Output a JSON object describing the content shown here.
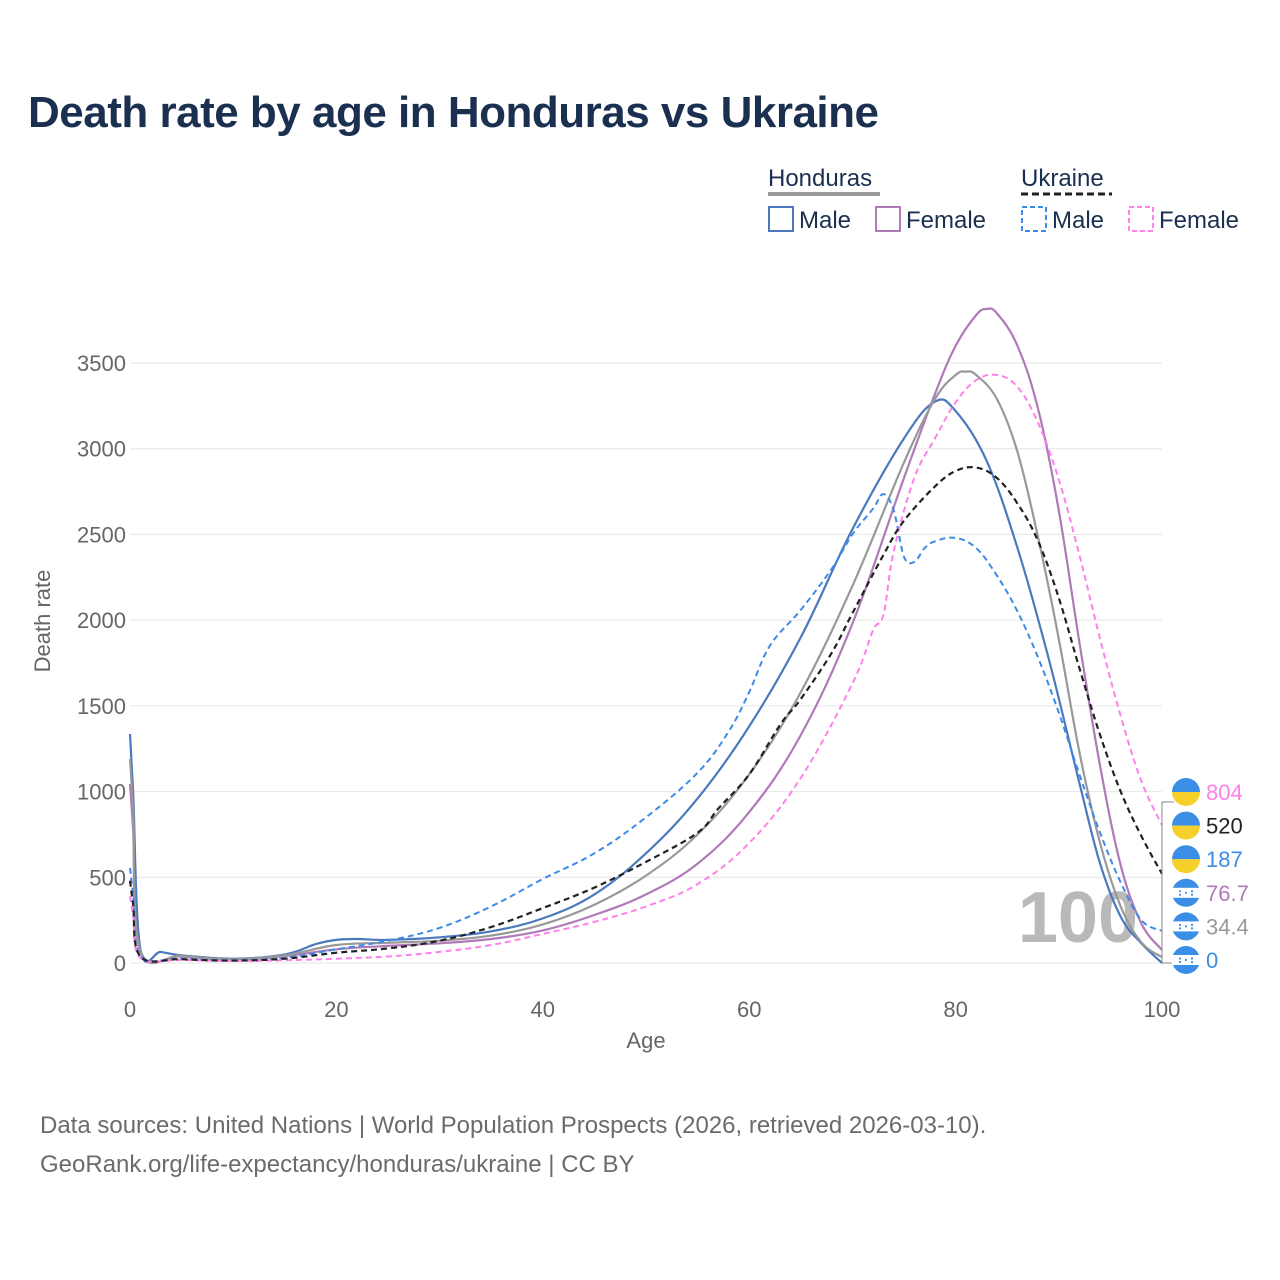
{
  "title": "Death rate by age in Honduras vs Ukraine",
  "legend": {
    "groups": [
      {
        "name": "Honduras",
        "line_color": "#999999",
        "dashed": false,
        "items": [
          {
            "label": "Male",
            "color": "#4a79bd"
          },
          {
            "label": "Female",
            "color": "#b07ab8"
          }
        ]
      },
      {
        "name": "Ukraine",
        "line_color": "#222222",
        "dashed": true,
        "items": [
          {
            "label": "Male",
            "color": "#3d8be8"
          },
          {
            "label": "Female",
            "color": "#ff80e8"
          }
        ]
      }
    ]
  },
  "chart_data": {
    "type": "line",
    "title": "Death rate by age in Honduras vs Ukraine",
    "xlabel": "Age",
    "ylabel": "Death rate",
    "xlim": [
      0,
      100
    ],
    "ylim": [
      0,
      3900
    ],
    "x_ticks": [
      0,
      20,
      40,
      60,
      80,
      100
    ],
    "y_ticks": [
      0,
      500,
      1000,
      1500,
      2000,
      2500,
      3000,
      3500
    ],
    "grid": true,
    "watermark": "100",
    "series": [
      {
        "name": "Honduras Male",
        "color": "#4a79bd",
        "dashed": false,
        "width": 2.2,
        "points": [
          [
            0,
            1335
          ],
          [
            0.3,
            1000
          ],
          [
            1,
            85
          ],
          [
            3,
            65
          ],
          [
            5,
            45
          ],
          [
            10,
            25
          ],
          [
            15,
            50
          ],
          [
            18,
            110
          ],
          [
            20,
            135
          ],
          [
            22,
            140
          ],
          [
            25,
            135
          ],
          [
            30,
            150
          ],
          [
            35,
            185
          ],
          [
            40,
            260
          ],
          [
            45,
            400
          ],
          [
            50,
            640
          ],
          [
            55,
            960
          ],
          [
            60,
            1380
          ],
          [
            65,
            1900
          ],
          [
            70,
            2530
          ],
          [
            75,
            3060
          ],
          [
            78,
            3275
          ],
          [
            80,
            3220
          ],
          [
            83,
            2930
          ],
          [
            86,
            2420
          ],
          [
            89,
            1780
          ],
          [
            92,
            1050
          ],
          [
            94,
            580
          ],
          [
            96,
            270
          ],
          [
            98,
            115
          ],
          [
            100,
            0
          ]
        ]
      },
      {
        "name": "Honduras Female",
        "color": "#b07ab8",
        "dashed": false,
        "width": 2.2,
        "points": [
          [
            0,
            1045
          ],
          [
            0.3,
            780
          ],
          [
            1,
            65
          ],
          [
            5,
            38
          ],
          [
            10,
            20
          ],
          [
            15,
            40
          ],
          [
            20,
            80
          ],
          [
            25,
            100
          ],
          [
            30,
            115
          ],
          [
            35,
            140
          ],
          [
            40,
            190
          ],
          [
            45,
            280
          ],
          [
            50,
            400
          ],
          [
            55,
            580
          ],
          [
            60,
            880
          ],
          [
            65,
            1330
          ],
          [
            70,
            1980
          ],
          [
            75,
            2830
          ],
          [
            78,
            3320
          ],
          [
            80,
            3600
          ],
          [
            82,
            3780
          ],
          [
            83,
            3815
          ],
          [
            84,
            3790
          ],
          [
            86,
            3600
          ],
          [
            88,
            3230
          ],
          [
            90,
            2640
          ],
          [
            92,
            1870
          ],
          [
            94,
            1150
          ],
          [
            96,
            570
          ],
          [
            98,
            230
          ],
          [
            100,
            76.7
          ]
        ]
      },
      {
        "name": "Honduras (both)",
        "color": "#999999",
        "dashed": false,
        "width": 2.2,
        "points": [
          [
            0,
            1190
          ],
          [
            0.3,
            890
          ],
          [
            1,
            75
          ],
          [
            5,
            42
          ],
          [
            10,
            22
          ],
          [
            15,
            45
          ],
          [
            20,
            105
          ],
          [
            25,
            118
          ],
          [
            30,
            130
          ],
          [
            35,
            160
          ],
          [
            40,
            225
          ],
          [
            45,
            340
          ],
          [
            50,
            510
          ],
          [
            55,
            750
          ],
          [
            60,
            1100
          ],
          [
            65,
            1580
          ],
          [
            70,
            2200
          ],
          [
            75,
            2920
          ],
          [
            78,
            3290
          ],
          [
            80,
            3430
          ],
          [
            81,
            3450
          ],
          [
            82,
            3430
          ],
          [
            84,
            3290
          ],
          [
            86,
            2980
          ],
          [
            88,
            2480
          ],
          [
            90,
            1890
          ],
          [
            92,
            1230
          ],
          [
            94,
            700
          ],
          [
            96,
            330
          ],
          [
            98,
            120
          ],
          [
            100,
            34.4
          ]
        ]
      },
      {
        "name": "Ukraine Male",
        "color": "#3d8be8",
        "dashed": true,
        "width": 2.0,
        "points": [
          [
            0,
            555
          ],
          [
            0.3,
            400
          ],
          [
            1,
            45
          ],
          [
            5,
            25
          ],
          [
            10,
            15
          ],
          [
            15,
            30
          ],
          [
            20,
            80
          ],
          [
            25,
            130
          ],
          [
            30,
            205
          ],
          [
            35,
            330
          ],
          [
            40,
            490
          ],
          [
            45,
            640
          ],
          [
            50,
            850
          ],
          [
            55,
            1110
          ],
          [
            58,
            1350
          ],
          [
            60,
            1580
          ],
          [
            62,
            1850
          ],
          [
            65,
            2060
          ],
          [
            68,
            2300
          ],
          [
            70,
            2500
          ],
          [
            72,
            2650
          ],
          [
            73,
            2735
          ],
          [
            74,
            2640
          ],
          [
            75,
            2370
          ],
          [
            76,
            2340
          ],
          [
            77,
            2420
          ],
          [
            78,
            2460
          ],
          [
            80,
            2480
          ],
          [
            82,
            2420
          ],
          [
            84,
            2260
          ],
          [
            86,
            2050
          ],
          [
            88,
            1780
          ],
          [
            90,
            1460
          ],
          [
            92,
            1100
          ],
          [
            94,
            760
          ],
          [
            96,
            470
          ],
          [
            98,
            250
          ],
          [
            100,
            187
          ]
        ]
      },
      {
        "name": "Ukraine Female",
        "color": "#ff80e8",
        "dashed": true,
        "width": 2.0,
        "points": [
          [
            0,
            390
          ],
          [
            0.3,
            280
          ],
          [
            1,
            30
          ],
          [
            5,
            18
          ],
          [
            10,
            12
          ],
          [
            15,
            16
          ],
          [
            20,
            25
          ],
          [
            25,
            38
          ],
          [
            30,
            65
          ],
          [
            35,
            105
          ],
          [
            40,
            170
          ],
          [
            45,
            240
          ],
          [
            50,
            330
          ],
          [
            55,
            460
          ],
          [
            60,
            700
          ],
          [
            65,
            1080
          ],
          [
            70,
            1630
          ],
          [
            72,
            1940
          ],
          [
            73,
            2030
          ],
          [
            74,
            2400
          ],
          [
            76,
            2830
          ],
          [
            78,
            3060
          ],
          [
            80,
            3270
          ],
          [
            82,
            3400
          ],
          [
            84,
            3430
          ],
          [
            86,
            3360
          ],
          [
            88,
            3150
          ],
          [
            90,
            2820
          ],
          [
            92,
            2380
          ],
          [
            94,
            1890
          ],
          [
            96,
            1440
          ],
          [
            98,
            1060
          ],
          [
            100,
            804
          ]
        ]
      },
      {
        "name": "Ukraine (both)",
        "color": "#222222",
        "dashed": true,
        "width": 2.2,
        "points": [
          [
            0,
            480
          ],
          [
            0.3,
            345
          ],
          [
            1,
            38
          ],
          [
            5,
            22
          ],
          [
            10,
            14
          ],
          [
            15,
            25
          ],
          [
            20,
            60
          ],
          [
            25,
            85
          ],
          [
            30,
            130
          ],
          [
            35,
            210
          ],
          [
            40,
            320
          ],
          [
            45,
            440
          ],
          [
            50,
            590
          ],
          [
            55,
            760
          ],
          [
            57,
            900
          ],
          [
            60,
            1100
          ],
          [
            63,
            1390
          ],
          [
            65,
            1540
          ],
          [
            68,
            1810
          ],
          [
            70,
            2040
          ],
          [
            73,
            2380
          ],
          [
            75,
            2580
          ],
          [
            78,
            2780
          ],
          [
            80,
            2870
          ],
          [
            82,
            2890
          ],
          [
            84,
            2830
          ],
          [
            86,
            2680
          ],
          [
            88,
            2460
          ],
          [
            90,
            2130
          ],
          [
            92,
            1720
          ],
          [
            94,
            1330
          ],
          [
            96,
            1000
          ],
          [
            98,
            740
          ],
          [
            100,
            520
          ]
        ]
      }
    ],
    "end_labels": [
      {
        "text": "804",
        "value": 804,
        "color": "#ff80e8",
        "flag": "ukraine"
      },
      {
        "text": "520",
        "value": 520,
        "color": "#222222",
        "flag": "ukraine"
      },
      {
        "text": "187",
        "value": 187,
        "color": "#3d8be8",
        "flag": "ukraine"
      },
      {
        "text": "76.7",
        "value": 76.7,
        "color": "#b07ab8",
        "flag": "honduras"
      },
      {
        "text": "34.4",
        "value": 34.4,
        "color": "#999999",
        "flag": "honduras"
      },
      {
        "text": "0",
        "value": 0,
        "color": "#3d8be8",
        "flag": "honduras"
      }
    ]
  },
  "footer": {
    "line1": "Data sources: United Nations | World Population Prospects (2026, retrieved 2026-03-10).",
    "line2": "GeoRank.org/life-expectancy/honduras/ukraine | CC BY"
  }
}
